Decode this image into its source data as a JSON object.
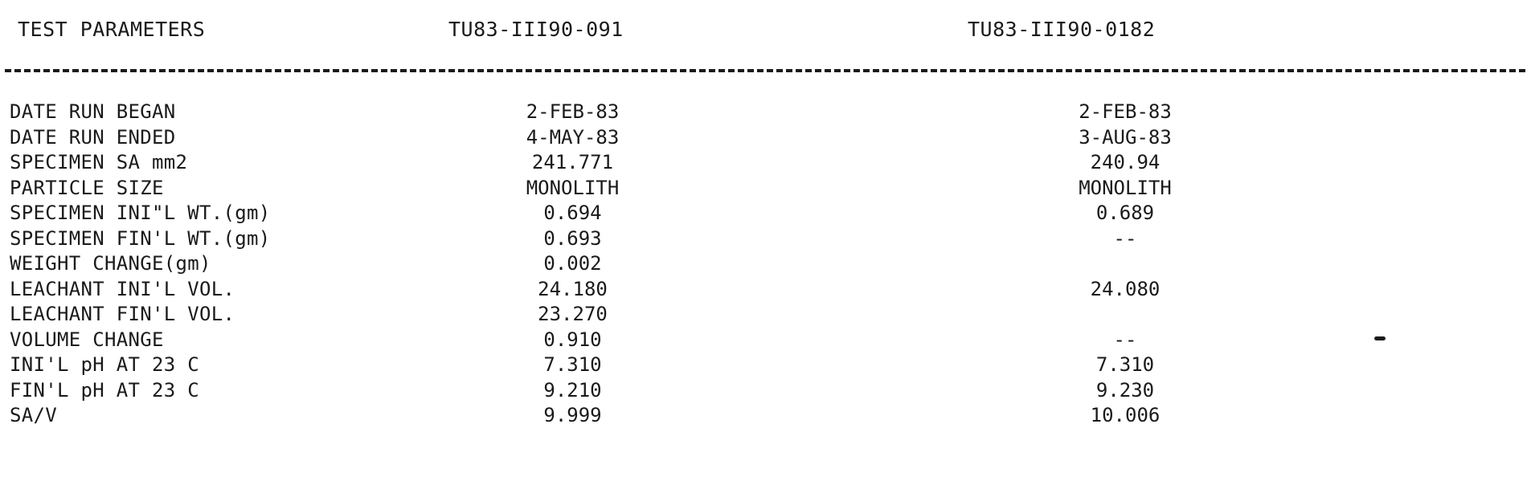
{
  "header": {
    "param_label": "TEST PARAMETERS",
    "specimen_1": "TU83-III90-091",
    "specimen_2": "TU83-III90-0182"
  },
  "rows": [
    {
      "label": "DATE RUN BEGAN",
      "s1": "2-FEB-83",
      "s2": "2-FEB-83"
    },
    {
      "label": "DATE RUN ENDED",
      "s1": "4-MAY-83",
      "s2": "3-AUG-83"
    },
    {
      "label": "SPECIMEN SA mm2",
      "s1": "241.771",
      "s2": "240.94"
    },
    {
      "label": "PARTICLE SIZE",
      "s1": "MONOLITH",
      "s2": "MONOLITH"
    },
    {
      "label": "SPECIMEN INI\"L WT.(gm)",
      "s1": "0.694",
      "s2": "0.689"
    },
    {
      "label": "SPECIMEN FIN'L WT.(gm)",
      "s1": "0.693",
      "s2": "--"
    },
    {
      "label": "WEIGHT CHANGE(gm)",
      "s1": "0.002",
      "s2": ""
    },
    {
      "label": "LEACHANT INI'L VOL.",
      "s1": "24.180",
      "s2": "24.080"
    },
    {
      "label": "LEACHANT FIN'L VOL.",
      "s1": "23.270",
      "s2": ""
    },
    {
      "label": "VOLUME CHANGE",
      "s1": "0.910",
      "s2": "--"
    },
    {
      "label": "INI'L pH AT 23 C",
      "s1": "7.310",
      "s2": "7.310"
    },
    {
      "label": "FIN'L pH AT 23 C",
      "s1": "9.210",
      "s2": "9.230"
    },
    {
      "label": "SA/V",
      "s1": "9.999",
      "s2": "10.006"
    }
  ]
}
